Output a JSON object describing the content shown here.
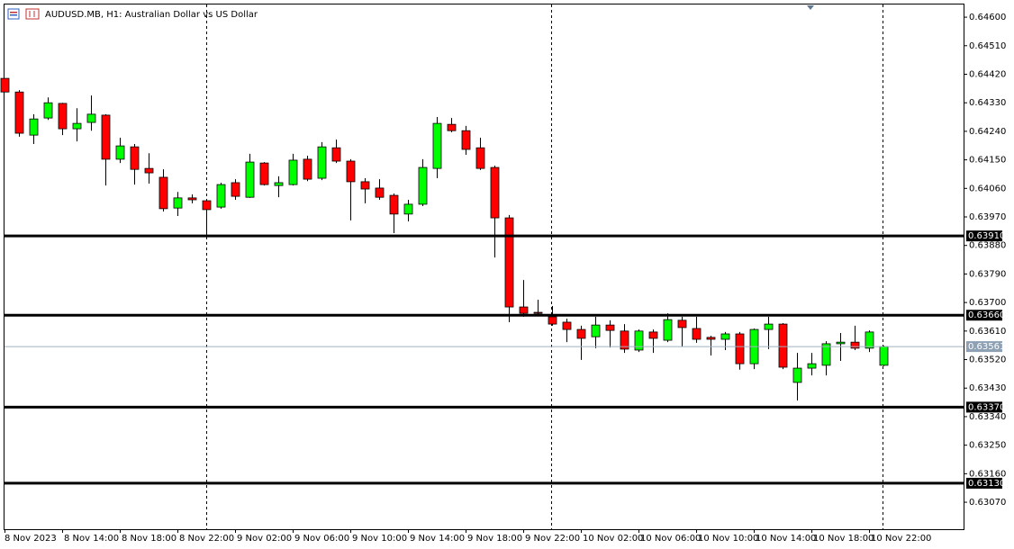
{
  "chart_data": {
    "type": "candlestick",
    "title": "AUDUSD.MB, H1:  Australian Dollar vs US Dollar",
    "categories": [
      "8 Nov 2023",
      null,
      null,
      null,
      "8 Nov 14:00",
      null,
      null,
      null,
      "8 Nov 18:00",
      null,
      null,
      null,
      "8 Nov 22:00",
      null,
      null,
      null,
      "9 Nov 02:00",
      null,
      null,
      null,
      "9 Nov 06:00",
      null,
      null,
      null,
      "9 Nov 10:00",
      null,
      null,
      null,
      "9 Nov 14:00",
      null,
      null,
      null,
      "9 Nov 18:00",
      null,
      null,
      null,
      "9 Nov 22:00",
      null,
      null,
      null,
      "10 Nov 02:00",
      null,
      null,
      null,
      "10 Nov 06:00",
      null,
      null,
      null,
      "10 Nov 10:00",
      null,
      null,
      null,
      "10 Nov 14:00",
      null,
      null,
      null,
      "10 Nov 18:00",
      null,
      null,
      null,
      "10 Nov 22:00",
      null
    ],
    "open": [
      0.64407,
      0.64364,
      0.64228,
      0.64282,
      0.64328,
      0.64248,
      0.64268,
      0.64291,
      0.64152,
      0.64191,
      0.64123,
      0.64095,
      0.63998,
      0.6403,
      0.64021,
      0.64001,
      0.64078,
      0.64032,
      0.6414,
      0.64069,
      0.64072,
      0.64152,
      0.64092,
      0.64188,
      0.64146,
      0.64081,
      0.64061,
      0.64038,
      0.63979,
      0.6401,
      0.64123,
      0.64262,
      0.64242,
      0.64188,
      0.64126,
      0.63967,
      0.63686,
      0.63669,
      0.63655,
      0.63638,
      0.63615,
      0.63592,
      0.63629,
      0.6361,
      0.6355,
      0.63607,
      0.63581,
      0.63644,
      0.63618,
      0.6359,
      0.63584,
      0.63601,
      0.63507,
      0.63615,
      0.63632,
      0.63448,
      0.63493,
      0.63502,
      0.6357,
      0.63575,
      0.63556,
      0.63502
    ],
    "high": [
      0.64407,
      0.6437,
      0.64294,
      0.64347,
      0.6433,
      0.64313,
      0.64353,
      0.64294,
      0.6422,
      0.642,
      0.64171,
      0.6412,
      0.64049,
      0.64041,
      0.64024,
      0.64078,
      0.64089,
      0.64169,
      0.64143,
      0.64098,
      0.64169,
      0.64163,
      0.64206,
      0.64214,
      0.64152,
      0.64092,
      0.64089,
      0.64044,
      0.64024,
      0.64152,
      0.64285,
      0.64282,
      0.64257,
      0.6422,
      0.64132,
      0.63976,
      0.63771,
      0.63709,
      0.63689,
      0.63649,
      0.63627,
      0.63655,
      0.63644,
      0.63632,
      0.63615,
      0.63615,
      0.63666,
      0.63655,
      0.63655,
      0.63595,
      0.63607,
      0.63607,
      0.63618,
      0.63655,
      0.63635,
      0.63541,
      0.63541,
      0.63578,
      0.63604,
      0.63627,
      0.63612,
      0.63564
    ],
    "low": [
      0.64364,
      0.64223,
      0.642,
      0.64276,
      0.64228,
      0.64208,
      0.64242,
      0.64069,
      0.6414,
      0.64072,
      0.64075,
      0.63987,
      0.63973,
      0.64013,
      0.6391,
      0.63996,
      0.64024,
      0.6403,
      0.64069,
      0.64032,
      0.64069,
      0.64083,
      0.64086,
      0.6414,
      0.63959,
      0.64013,
      0.64024,
      0.63919,
      0.63956,
      0.64004,
      0.64092,
      0.64237,
      0.64166,
      0.64118,
      0.63842,
      0.63638,
      0.63655,
      0.63663,
      0.63627,
      0.63575,
      0.63519,
      0.63556,
      0.63558,
      0.63541,
      0.63544,
      0.63541,
      0.63575,
      0.63561,
      0.63573,
      0.63533,
      0.6355,
      0.63488,
      0.6349,
      0.63553,
      0.6349,
      0.63391,
      0.6347,
      0.6347,
      0.63516,
      0.6355,
      0.63544,
      0.63499
    ],
    "close": [
      0.64364,
      0.64234,
      0.64279,
      0.6433,
      0.64248,
      0.64265,
      0.64294,
      0.64152,
      0.64194,
      0.6412,
      0.64109,
      0.63996,
      0.6403,
      0.64024,
      0.63993,
      0.64072,
      0.64035,
      0.64143,
      0.64072,
      0.64078,
      0.64149,
      0.64089,
      0.64191,
      0.64146,
      0.64081,
      0.64058,
      0.64032,
      0.63979,
      0.6401,
      0.64126,
      0.64265,
      0.64242,
      0.64183,
      0.64123,
      0.63967,
      0.63686,
      0.63666,
      0.63666,
      0.63632,
      0.63615,
      0.63587,
      0.63629,
      0.63612,
      0.63553,
      0.6361,
      0.63587,
      0.63646,
      0.63621,
      0.63584,
      0.63584,
      0.63601,
      0.63507,
      0.63615,
      0.63632,
      0.63496,
      0.63493,
      0.63507,
      0.6357,
      0.63575,
      0.63556,
      0.63607,
      0.63561
    ],
    "up_color": "#00ff00",
    "down_color": "#ff0000",
    "ylim": [
      0.62985,
      0.6464
    ],
    "yticks": [
      {
        "value": 0.646,
        "label": "0.64600"
      },
      {
        "value": 0.6451,
        "label": "0.64510"
      },
      {
        "value": 0.6442,
        "label": "0.64420"
      },
      {
        "value": 0.6433,
        "label": "0.64330"
      },
      {
        "value": 0.6424,
        "label": "0.64240"
      },
      {
        "value": 0.6415,
        "label": "0.64150"
      },
      {
        "value": 0.6406,
        "label": "0.64060"
      },
      {
        "value": 0.6397,
        "label": "0.63970"
      },
      {
        "value": 0.6388,
        "label": "0.63880"
      },
      {
        "value": 0.6379,
        "label": "0.63790"
      },
      {
        "value": 0.637,
        "label": "0.63700"
      },
      {
        "value": 0.6361,
        "label": "0.63610"
      },
      {
        "value": 0.6352,
        "label": "0.63520"
      },
      {
        "value": 0.6343,
        "label": "0.63430"
      },
      {
        "value": 0.6334,
        "label": "0.63340"
      },
      {
        "value": 0.6325,
        "label": "0.63250"
      },
      {
        "value": 0.6316,
        "label": "0.63160"
      },
      {
        "value": 0.6307,
        "label": "0.63070"
      }
    ],
    "levels": [
      {
        "value": 0.6391,
        "label": "0.63910"
      },
      {
        "value": 0.6366,
        "label": "0.63660"
      },
      {
        "value": 0.6337,
        "label": "0.63370"
      },
      {
        "value": 0.6313,
        "label": "0.63130"
      }
    ],
    "current_price": {
      "value": 0.63561,
      "label": "0.63561"
    }
  }
}
